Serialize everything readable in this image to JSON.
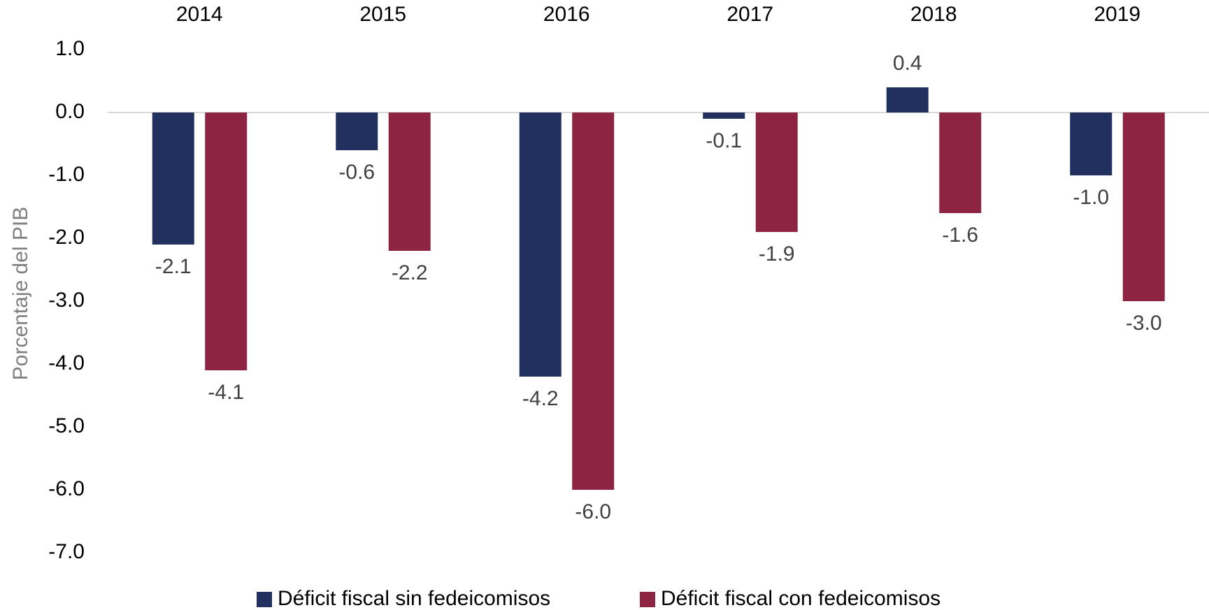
{
  "chart_data": {
    "type": "bar",
    "categories": [
      "2014",
      "2015",
      "2016",
      "2017",
      "2018",
      "2019"
    ],
    "series": [
      {
        "name": "Déficit fiscal sin fedeicomisos",
        "color": "#21305e",
        "values": [
          -2.1,
          -0.6,
          -4.2,
          -0.1,
          0.4,
          -1.0
        ],
        "value_labels": [
          "-2.1",
          "-0.6",
          "-4.2",
          "-0.1",
          "0.4",
          "-1.0"
        ]
      },
      {
        "name": "Déficit fiscal con fedeicomisos",
        "color": "#8c2442",
        "values": [
          -4.1,
          -2.2,
          -6.0,
          -1.9,
          -1.6,
          -3.0
        ],
        "value_labels": [
          "-4.1",
          "-2.2",
          "-6.0",
          "-1.9",
          "-1.6",
          "-3.0"
        ]
      }
    ],
    "y_axis_label": "Porcentaje del PIB",
    "ylim": [
      -7,
      1
    ],
    "yticks": [
      {
        "value": 1,
        "label": "1.0"
      },
      {
        "value": 0,
        "label": "0.0"
      },
      {
        "value": -1,
        "label": "-1.0"
      },
      {
        "value": -2,
        "label": "-2.0"
      },
      {
        "value": -3,
        "label": "-3.0"
      },
      {
        "value": -4,
        "label": "-4.0"
      },
      {
        "value": -5,
        "label": "-5.0"
      },
      {
        "value": -6,
        "label": "-6.0"
      },
      {
        "value": -7,
        "label": "-7.0"
      }
    ],
    "grid": false,
    "legend": "bottom"
  }
}
